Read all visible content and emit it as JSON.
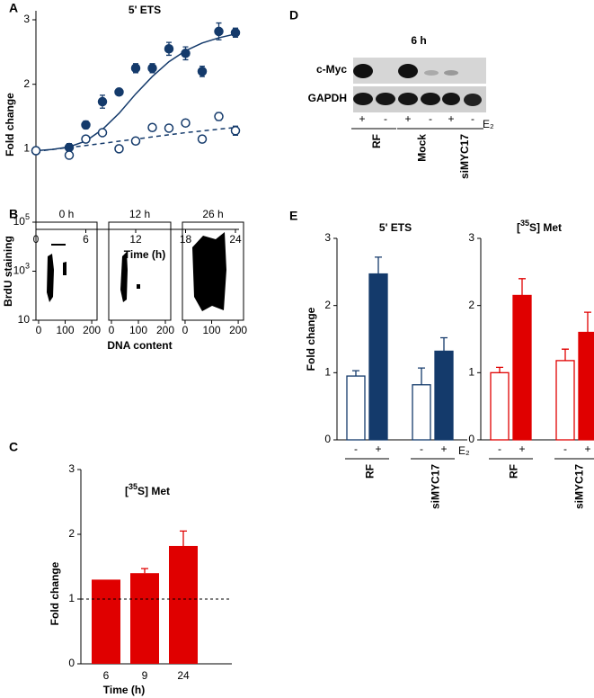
{
  "chart_data": [
    {
      "type": "line",
      "panel": "A",
      "title": "5' ETS",
      "xlabel": "Time (h)",
      "ylabel": "Fold change",
      "xlim": [
        0,
        24
      ],
      "xticks": [
        0,
        6,
        12,
        18,
        24
      ],
      "ylim": [
        -0.25,
        3
      ],
      "yticks": [
        1,
        2,
        3
      ],
      "series": [
        {
          "style": "line",
          "color": "#143a6b",
          "x": [
            0,
            2,
            4,
            6,
            8,
            10,
            12,
            14,
            16,
            18,
            20,
            22,
            24
          ],
          "values": [
            0.97,
            0.99,
            1.03,
            1.12,
            1.3,
            1.55,
            1.85,
            2.12,
            2.35,
            2.52,
            2.64,
            2.72,
            2.78
          ]
        },
        {
          "style": "dashed-line",
          "color": "#143a6b",
          "x": [
            0,
            6,
            12,
            18,
            24
          ],
          "values": [
            0.96,
            1.05,
            1.15,
            1.25,
            1.33
          ]
        },
        {
          "style": "filled-marker",
          "color": "#143a6b",
          "x": [
            0,
            4,
            6,
            8,
            10,
            12,
            14,
            16,
            18,
            20,
            22,
            24
          ],
          "values": [
            0.97,
            1.02,
            1.37,
            1.73,
            1.88,
            2.25,
            2.25,
            2.55,
            2.48,
            2.2,
            2.82,
            2.8
          ],
          "errors": [
            0.03,
            0.06,
            0.06,
            0.1,
            0.05,
            0.07,
            0.07,
            0.1,
            0.1,
            0.08,
            0.13,
            0.07
          ]
        },
        {
          "style": "open-marker",
          "color": "#143a6b",
          "x": [
            0,
            4,
            6,
            8,
            10,
            12,
            14,
            16,
            18,
            20,
            22,
            24
          ],
          "values": [
            0.97,
            0.9,
            1.15,
            1.25,
            1.0,
            1.12,
            1.33,
            1.32,
            1.4,
            1.15,
            1.5,
            1.28
          ],
          "errors": [
            0.03,
            0.03,
            0.04,
            0.03,
            0.03,
            0.05,
            0.04,
            0.05,
            0.03,
            0.05,
            0.06,
            0.07
          ]
        }
      ]
    },
    {
      "type": "flow",
      "panel": "B",
      "title": "0 h",
      "ylabel": "BrdU staining",
      "xlim": [
        -10,
        220
      ],
      "xticks": [
        0,
        100,
        200
      ],
      "ylog": true,
      "ylim": [
        10,
        100000
      ],
      "yticks": [
        {
          "value": 100000,
          "label": "10",
          "exp": "5"
        },
        {
          "value": 1000,
          "label": "10",
          "exp": "3"
        },
        10
      ]
    },
    {
      "type": "flow",
      "title": "12 h",
      "xlabel": "DNA content",
      "xlim": [
        -10,
        220
      ],
      "xticks": [
        0,
        100,
        200
      ],
      "ylog": true,
      "ylim": [
        10,
        100000
      ]
    },
    {
      "type": "flow",
      "title": "26 h",
      "xlim": [
        -10,
        220
      ],
      "xticks": [
        0,
        100,
        200
      ],
      "ylog": true,
      "ylim": [
        10,
        100000
      ]
    },
    {
      "type": "bar",
      "panel": "C",
      "title": [
        "[",
        "35",
        "S] Met"
      ],
      "xlabel": "Time (h)",
      "ylabel": "Fold change",
      "color": "#e00000",
      "categories": [
        6,
        9,
        24
      ],
      "values": [
        1.3,
        1.4,
        1.82
      ],
      "errors": [
        0,
        0.07,
        0.23
      ],
      "reference": 1,
      "ylim": [
        0,
        3
      ],
      "yticks": [
        0,
        1,
        2,
        3
      ]
    },
    {
      "type": "grouped-bar",
      "panel": "E",
      "title": [
        "5' ETS"
      ],
      "ylabel": "Fold change",
      "color": "#143a6b",
      "styles": [
        "open",
        "filled"
      ],
      "groups": [
        "RF",
        "siMYC17"
      ],
      "conditions": [
        "-",
        "+"
      ],
      "treatment": "E₂",
      "values": [
        [
          0.95,
          2.47
        ],
        [
          0.82,
          1.32
        ]
      ],
      "errors": [
        [
          0.08,
          0.25
        ],
        [
          0.25,
          0.2
        ]
      ],
      "ylim": [
        0,
        3
      ],
      "yticks": [
        0,
        1,
        2,
        3
      ]
    },
    {
      "type": "grouped-bar",
      "title": [
        "[",
        "35",
        "S] Met"
      ],
      "color": "#e00000",
      "styles": [
        "open",
        "filled"
      ],
      "groups": [
        "RF",
        "siMYC17"
      ],
      "conditions": [
        "-",
        "+"
      ],
      "treatment": "E₂",
      "values": [
        [
          1.0,
          2.15
        ],
        [
          1.18,
          1.6
        ]
      ],
      "errors": [
        [
          0.08,
          0.25
        ],
        [
          0.17,
          0.3
        ]
      ],
      "ylim": [
        0,
        3
      ],
      "yticks": [
        0,
        1,
        2,
        3
      ]
    }
  ],
  "blot": {
    "panel": "D",
    "title": "6 h",
    "rows": [
      "c-Myc",
      "GAPDH"
    ],
    "lanes": [
      "+",
      "-",
      "+",
      "-",
      "+",
      "-"
    ],
    "treatment": "E₂",
    "groups": [
      "RF",
      "Mock",
      "siMYC17"
    ]
  }
}
